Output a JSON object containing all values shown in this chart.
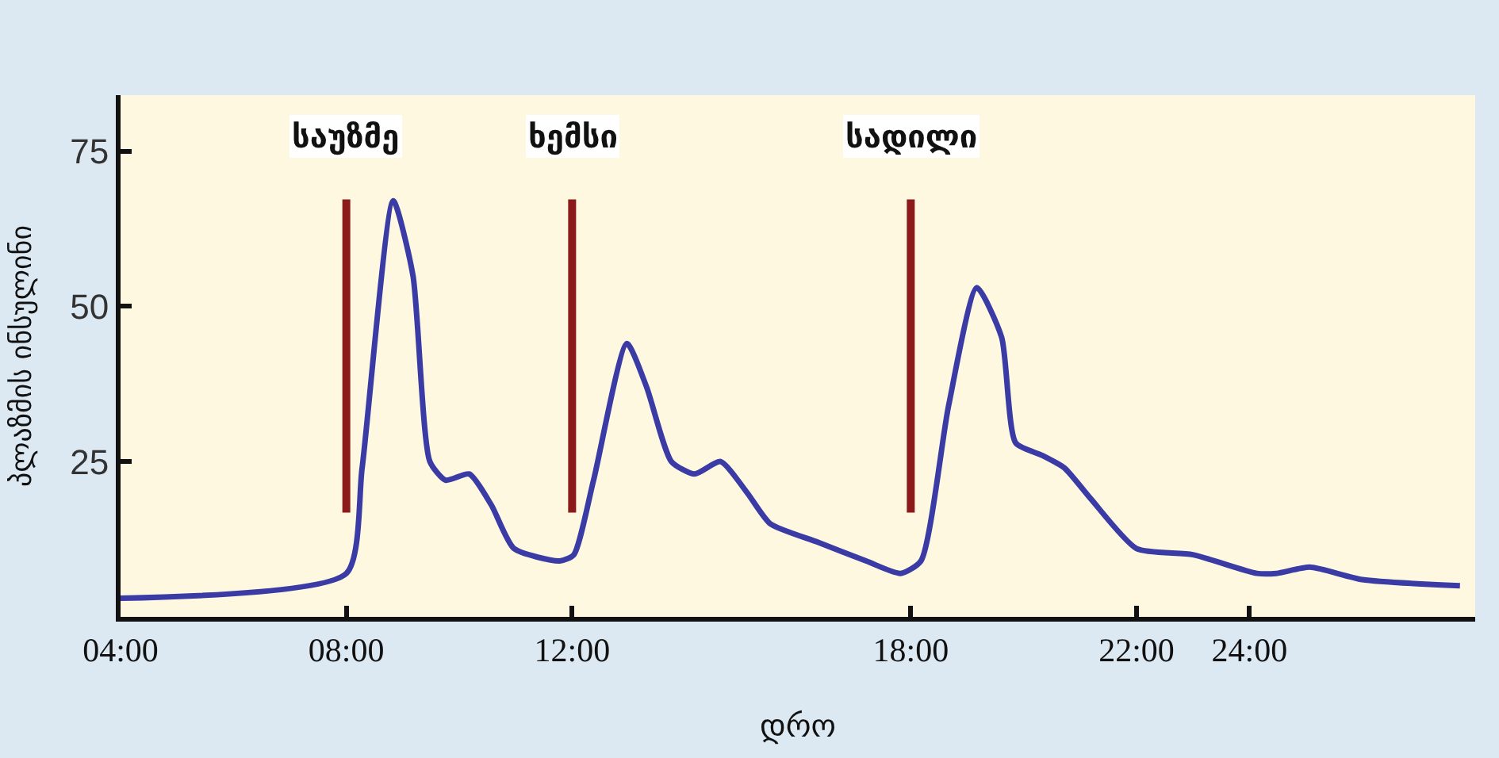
{
  "chart_data": {
    "type": "line",
    "xlabel": "დრო",
    "ylabel": "პლაზმის ინსულინი",
    "x": [
      4.0,
      8.0,
      8.28,
      8.83,
      9.18,
      9.48,
      9.76,
      10.18,
      10.57,
      10.97,
      11.78,
      12.03,
      12.38,
      12.97,
      13.32,
      13.76,
      14.17,
      14.63,
      15.1,
      15.51,
      16.36,
      17.21,
      17.82,
      18.18,
      18.67,
      19.17,
      19.61,
      19.86,
      20.33,
      20.72,
      21.19,
      22.0,
      23.0,
      24.13,
      24.48,
      25.07,
      26.0,
      27.73
    ],
    "series": [
      {
        "color": "#3b3ba6",
        "values": [
          3,
          7,
          24,
          67,
          55,
          25,
          22,
          23,
          18,
          11,
          9,
          10,
          22,
          44,
          37,
          25,
          23,
          25,
          20,
          15,
          12,
          9,
          7,
          9,
          34,
          53,
          45,
          28,
          26,
          24,
          19,
          11,
          10,
          7,
          7,
          8,
          6,
          5
        ]
      }
    ],
    "xlim": [
      4,
      28
    ],
    "xticks": [
      {
        "value": 4,
        "label": "04:00"
      },
      {
        "value": 8,
        "label": "08:00"
      },
      {
        "value": 12,
        "label": "12:00"
      },
      {
        "value": 18,
        "label": "18:00"
      },
      {
        "value": 22,
        "label": "22:00"
      },
      {
        "value": 24,
        "label": "24:00"
      }
    ],
    "ylim": [
      0,
      84
    ],
    "yticks": [
      25,
      50,
      75
    ],
    "ref_lines": [
      {
        "axis": "x",
        "value": 8,
        "label": "საუზმე",
        "color": "#8b1a1a"
      },
      {
        "axis": "x",
        "value": 12,
        "label": "ხემსი",
        "color": "#8b1a1a"
      },
      {
        "axis": "x",
        "value": 18,
        "label": "სადილი",
        "color": "#8b1a1a"
      }
    ],
    "grid": false,
    "line_style": "solid"
  }
}
